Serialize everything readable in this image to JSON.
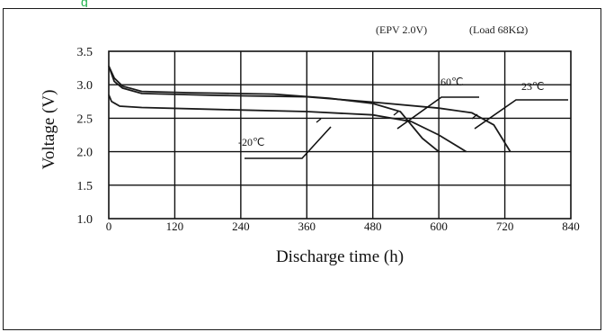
{
  "page": {
    "top_fragment_text": "g"
  },
  "chart_data": {
    "type": "line",
    "title": "",
    "conditions": [
      "(EPV 2.0V)",
      "(Load 68KΩ)"
    ],
    "xlabel": "Discharge time (h)",
    "ylabel": "Voltage (V)",
    "xlim": [
      0,
      840
    ],
    "ylim": [
      1.0,
      3.5
    ],
    "x_ticks": [
      "0",
      "120",
      "240",
      "360",
      "480",
      "600",
      "720",
      "840"
    ],
    "y_ticks": [
      "1.0",
      "1.5",
      "2.0",
      "2.5",
      "3.0",
      "3.5"
    ],
    "grid": true,
    "series": [
      {
        "name": "60℃",
        "x": [
          0,
          10,
          25,
          60,
          150,
          300,
          400,
          480,
          530,
          570,
          600
        ],
        "y": [
          3.28,
          3.1,
          2.98,
          2.9,
          2.88,
          2.86,
          2.8,
          2.72,
          2.6,
          2.2,
          2.0
        ]
      },
      {
        "name": "23℃",
        "x": [
          0,
          10,
          25,
          60,
          200,
          360,
          480,
          600,
          660,
          700,
          730
        ],
        "y": [
          3.28,
          3.05,
          2.95,
          2.87,
          2.84,
          2.82,
          2.74,
          2.65,
          2.58,
          2.4,
          2.0
        ]
      },
      {
        "name": "-20℃",
        "x": [
          0,
          5,
          20,
          60,
          200,
          360,
          480,
          550,
          600,
          650
        ],
        "y": [
          2.85,
          2.75,
          2.68,
          2.66,
          2.63,
          2.6,
          2.55,
          2.45,
          2.25,
          2.0
        ]
      }
    ],
    "annotations": [
      {
        "text": "60℃",
        "series": 0
      },
      {
        "text": "23℃",
        "series": 1
      },
      {
        "text": "-20℃",
        "series": 2
      }
    ]
  }
}
